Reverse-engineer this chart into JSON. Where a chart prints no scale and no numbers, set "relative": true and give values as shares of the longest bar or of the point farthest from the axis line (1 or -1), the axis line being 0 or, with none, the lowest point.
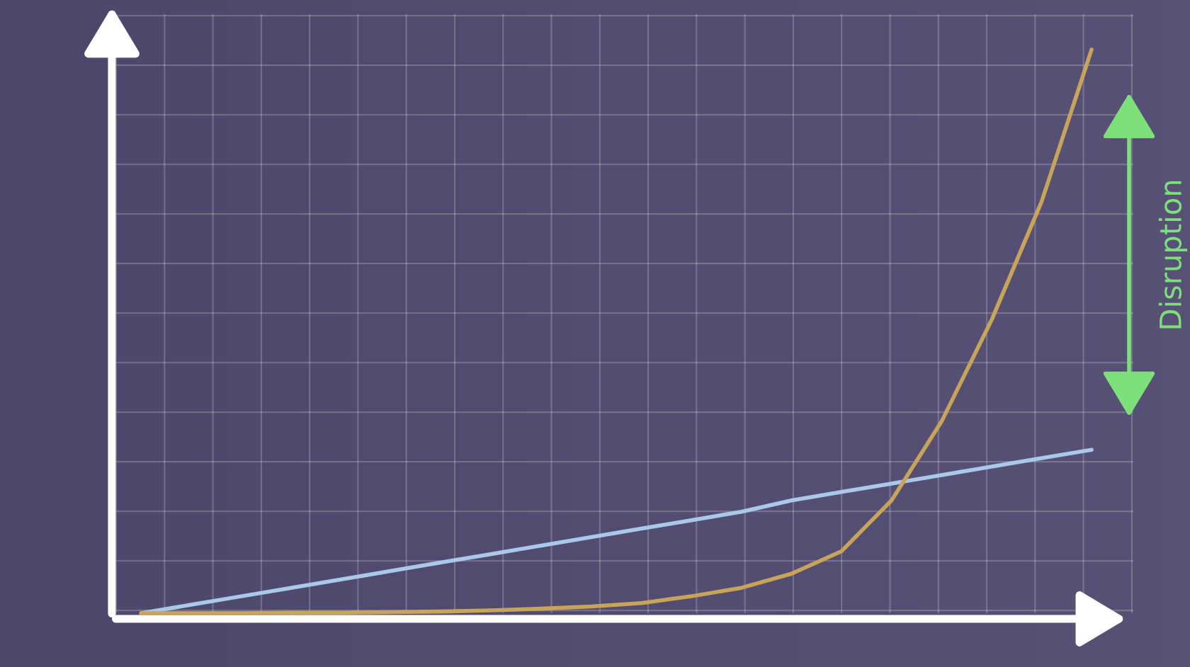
{
  "chart_data": {
    "type": "line",
    "relative": true,
    "grid": true,
    "tick_labels": false,
    "legend": false,
    "categories": [
      null,
      null,
      null,
      null,
      null,
      null,
      null,
      null,
      null,
      null,
      null,
      null,
      null,
      null,
      null,
      null,
      null,
      null,
      null,
      null
    ],
    "series": [
      {
        "color": "#a9c8ea",
        "values": [
          0,
          0.015,
          0.03,
          0.045,
          0.06,
          0.075,
          0.09,
          0.105,
          0.12,
          0.135,
          0.15,
          0.165,
          0.18,
          0.2,
          0.215,
          0.23,
          0.245,
          0.26,
          0.275,
          0.29
        ]
      },
      {
        "color": "#c8a45a",
        "values": [
          0,
          0,
          0,
          0.001,
          0.001,
          0.002,
          0.003,
          0.005,
          0.008,
          0.012,
          0.018,
          0.03,
          0.045,
          0.07,
          0.11,
          0.2,
          0.34,
          0.52,
          0.73,
          1
        ]
      }
    ],
    "annotations": [
      "Disruption"
    ]
  }
}
